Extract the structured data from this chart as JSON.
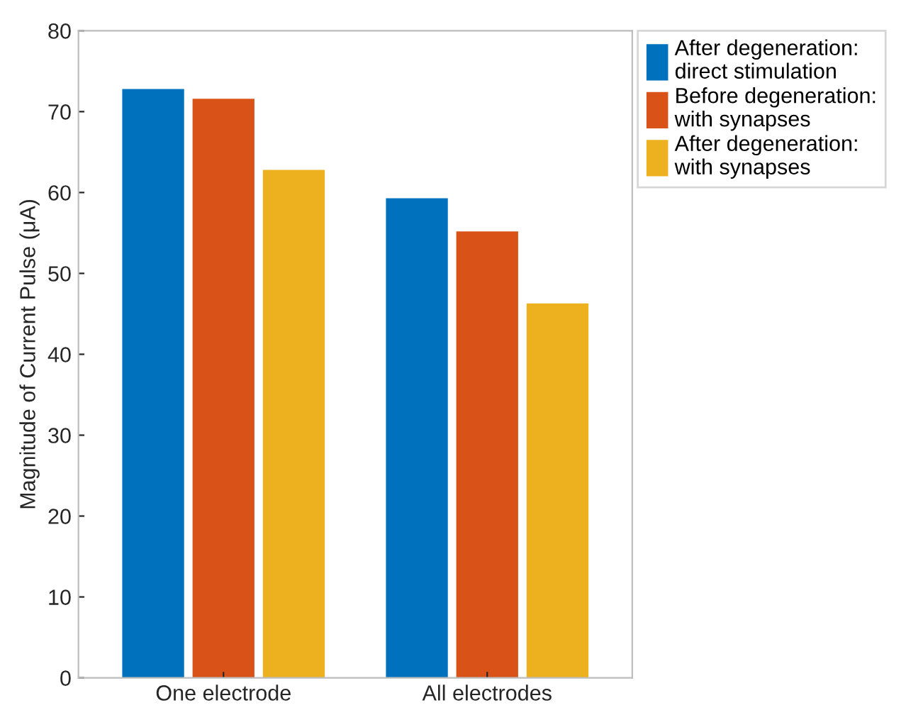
{
  "chart_data": {
    "type": "bar",
    "ylabel": "Magnitude of Current Pulse (μA)",
    "categories": [
      "One electrode",
      "All electrodes"
    ],
    "series": [
      {
        "name": "After degeneration:\ndirect stimulation",
        "color": "#0072bd",
        "values": [
          72.8,
          59.3
        ]
      },
      {
        "name": "Before degeneration:\nwith synapses",
        "color": "#d95319",
        "values": [
          71.6,
          55.2
        ]
      },
      {
        "name": "After degeneration:\nwith synapses",
        "color": "#edb120",
        "values": [
          62.8,
          46.3
        ]
      }
    ],
    "ylim": [
      0,
      80
    ],
    "yticks": [
      0,
      10,
      20,
      30,
      40,
      50,
      60,
      70,
      80
    ],
    "grid": false,
    "legend": "top right"
  }
}
